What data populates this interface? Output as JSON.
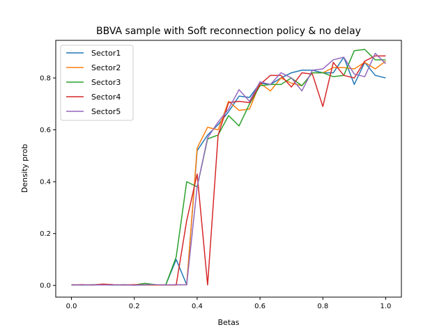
{
  "chart_data": {
    "type": "line",
    "title": "BBVA sample with Soft reconnection policy & no delay",
    "xlabel": "Betas",
    "ylabel": "Density prob",
    "xlim": [
      -0.05,
      1.05
    ],
    "ylim": [
      -0.045,
      0.945
    ],
    "xticks": [
      0.0,
      0.2,
      0.4,
      0.6,
      0.8,
      1.0
    ],
    "xtick_labels": [
      "0.0",
      "0.2",
      "0.4",
      "0.6",
      "0.8",
      "1.0"
    ],
    "yticks": [
      0.0,
      0.2,
      0.4,
      0.6,
      0.8
    ],
    "ytick_labels": [
      "0.0",
      "0.2",
      "0.4",
      "0.6",
      "0.8"
    ],
    "grid": false,
    "legend_position": "top-left",
    "x": [
      0.0,
      0.0333,
      0.0667,
      0.1,
      0.1333,
      0.1667,
      0.2,
      0.2333,
      0.2667,
      0.3,
      0.3333,
      0.3667,
      0.4,
      0.4333,
      0.4667,
      0.5,
      0.5333,
      0.5667,
      0.6,
      0.6333,
      0.6667,
      0.7,
      0.7333,
      0.7667,
      0.8,
      0.8333,
      0.8667,
      0.9,
      0.9333,
      0.9667,
      1.0
    ],
    "series": [
      {
        "name": "Sector1",
        "color": "#1f77b4",
        "values": [
          0.003,
          0.002,
          0.002,
          0.003,
          0.002,
          0.003,
          0.002,
          0.003,
          0.002,
          0.002,
          0.1,
          0.003,
          0.52,
          0.58,
          0.62,
          0.67,
          0.73,
          0.725,
          0.78,
          0.775,
          0.8,
          0.82,
          0.83,
          0.83,
          0.82,
          0.82,
          0.88,
          0.775,
          0.86,
          0.81,
          0.8
        ]
      },
      {
        "name": "Sector2",
        "color": "#ff7f0e",
        "values": [
          0.002,
          0.003,
          0.002,
          0.005,
          0.003,
          0.002,
          0.001,
          0.002,
          0.001,
          0.002,
          0.002,
          0.003,
          0.53,
          0.61,
          0.6,
          0.71,
          0.675,
          0.68,
          0.78,
          0.75,
          0.8,
          0.78,
          0.77,
          0.82,
          0.82,
          0.84,
          0.84,
          0.835,
          0.86,
          0.835,
          0.865
        ]
      },
      {
        "name": "Sector3",
        "color": "#2ca02c",
        "values": [
          0.002,
          0.002,
          0.003,
          0.003,
          0.002,
          0.002,
          0.002,
          0.008,
          0.003,
          0.002,
          0.11,
          0.4,
          0.38,
          0.565,
          0.58,
          0.655,
          0.615,
          0.7,
          0.77,
          0.775,
          0.775,
          0.8,
          0.77,
          0.82,
          0.82,
          0.805,
          0.81,
          0.905,
          0.91,
          0.87,
          0.87
        ]
      },
      {
        "name": "Sector4",
        "color": "#d62728",
        "values": [
          0.002,
          0.003,
          0.002,
          0.005,
          0.003,
          0.002,
          0.003,
          0.002,
          0.003,
          0.002,
          0.002,
          0.25,
          0.43,
          0.002,
          0.58,
          0.705,
          0.71,
          0.705,
          0.775,
          0.81,
          0.81,
          0.765,
          0.82,
          0.815,
          0.69,
          0.86,
          0.81,
          0.8,
          0.865,
          0.885,
          0.885
        ]
      },
      {
        "name": "Sector5",
        "color": "#9467bd",
        "values": [
          0.002,
          0.002,
          0.002,
          0.002,
          0.002,
          0.002,
          0.001,
          0.002,
          0.003,
          0.002,
          0.003,
          0.002,
          0.38,
          0.57,
          0.63,
          0.68,
          0.755,
          0.71,
          0.785,
          0.775,
          0.82,
          0.8,
          0.75,
          0.83,
          0.835,
          0.87,
          0.88,
          0.815,
          0.805,
          0.895,
          0.855
        ]
      }
    ]
  }
}
